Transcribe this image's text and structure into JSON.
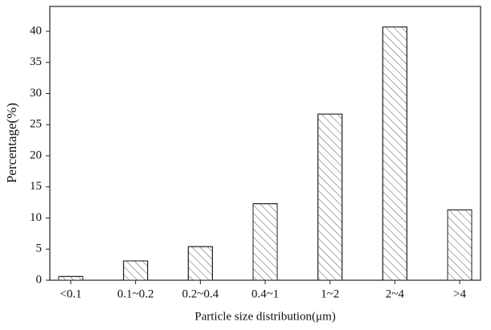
{
  "chart_data": {
    "type": "bar",
    "x_label": "Particle size distribution(μm)",
    "y_label": "Percentage(%)",
    "categories": [
      "<0.1",
      "0.1~0.2",
      "0.2~0.4",
      "0.4~1",
      "1~2",
      "2~4",
      ">4"
    ],
    "values": [
      0.6,
      3.1,
      5.4,
      12.3,
      26.7,
      40.7,
      11.3
    ],
    "color": "#ffffff",
    "ylim": [
      0,
      44
    ],
    "yticks": [
      0,
      5,
      10,
      15,
      20,
      25,
      30,
      35,
      40
    ],
    "grid": false
  }
}
